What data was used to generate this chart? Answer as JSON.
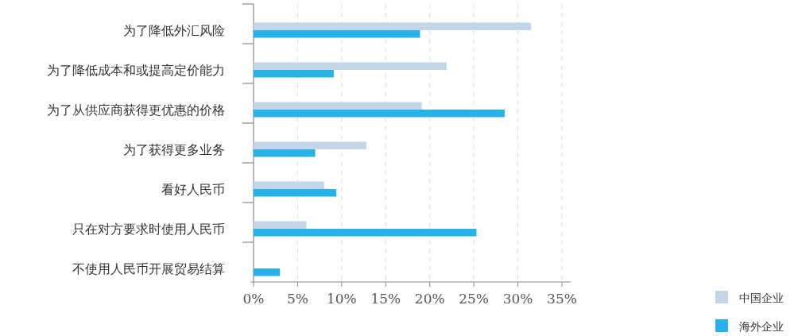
{
  "chart_data": {
    "type": "bar",
    "orientation": "horizontal",
    "categories": [
      "为了降低外汇风险",
      "为了降低成本和或提高定价能力",
      "为了从供应商获得更优惠的价格",
      "为了获得更多业务",
      "看好人民币",
      "只在对方要求时使用人民币",
      "不使用人民币开展贸易结算"
    ],
    "series": [
      {
        "name": "中国企业",
        "color": "#c3d6e8",
        "values": [
          31.5,
          21.9,
          19.1,
          12.8,
          8.0,
          6.0,
          null
        ]
      },
      {
        "name": "海外企业",
        "color": "#29b2e8",
        "values": [
          18.9,
          9.1,
          28.5,
          7.0,
          9.4,
          25.3,
          3.0
        ]
      }
    ],
    "xlim": [
      0,
      36
    ],
    "xticks": [
      {
        "value": 0,
        "label": "0%"
      },
      {
        "value": 5,
        "label": "5%"
      },
      {
        "value": 10,
        "label": "10%"
      },
      {
        "value": 15,
        "label": "15%"
      },
      {
        "value": 20,
        "label": "20%"
      },
      {
        "value": 25,
        "label": "25%"
      },
      {
        "value": 30,
        "label": "30%"
      },
      {
        "value": 35,
        "label": "35%"
      }
    ],
    "grid": "x",
    "legend": "bottom right"
  }
}
